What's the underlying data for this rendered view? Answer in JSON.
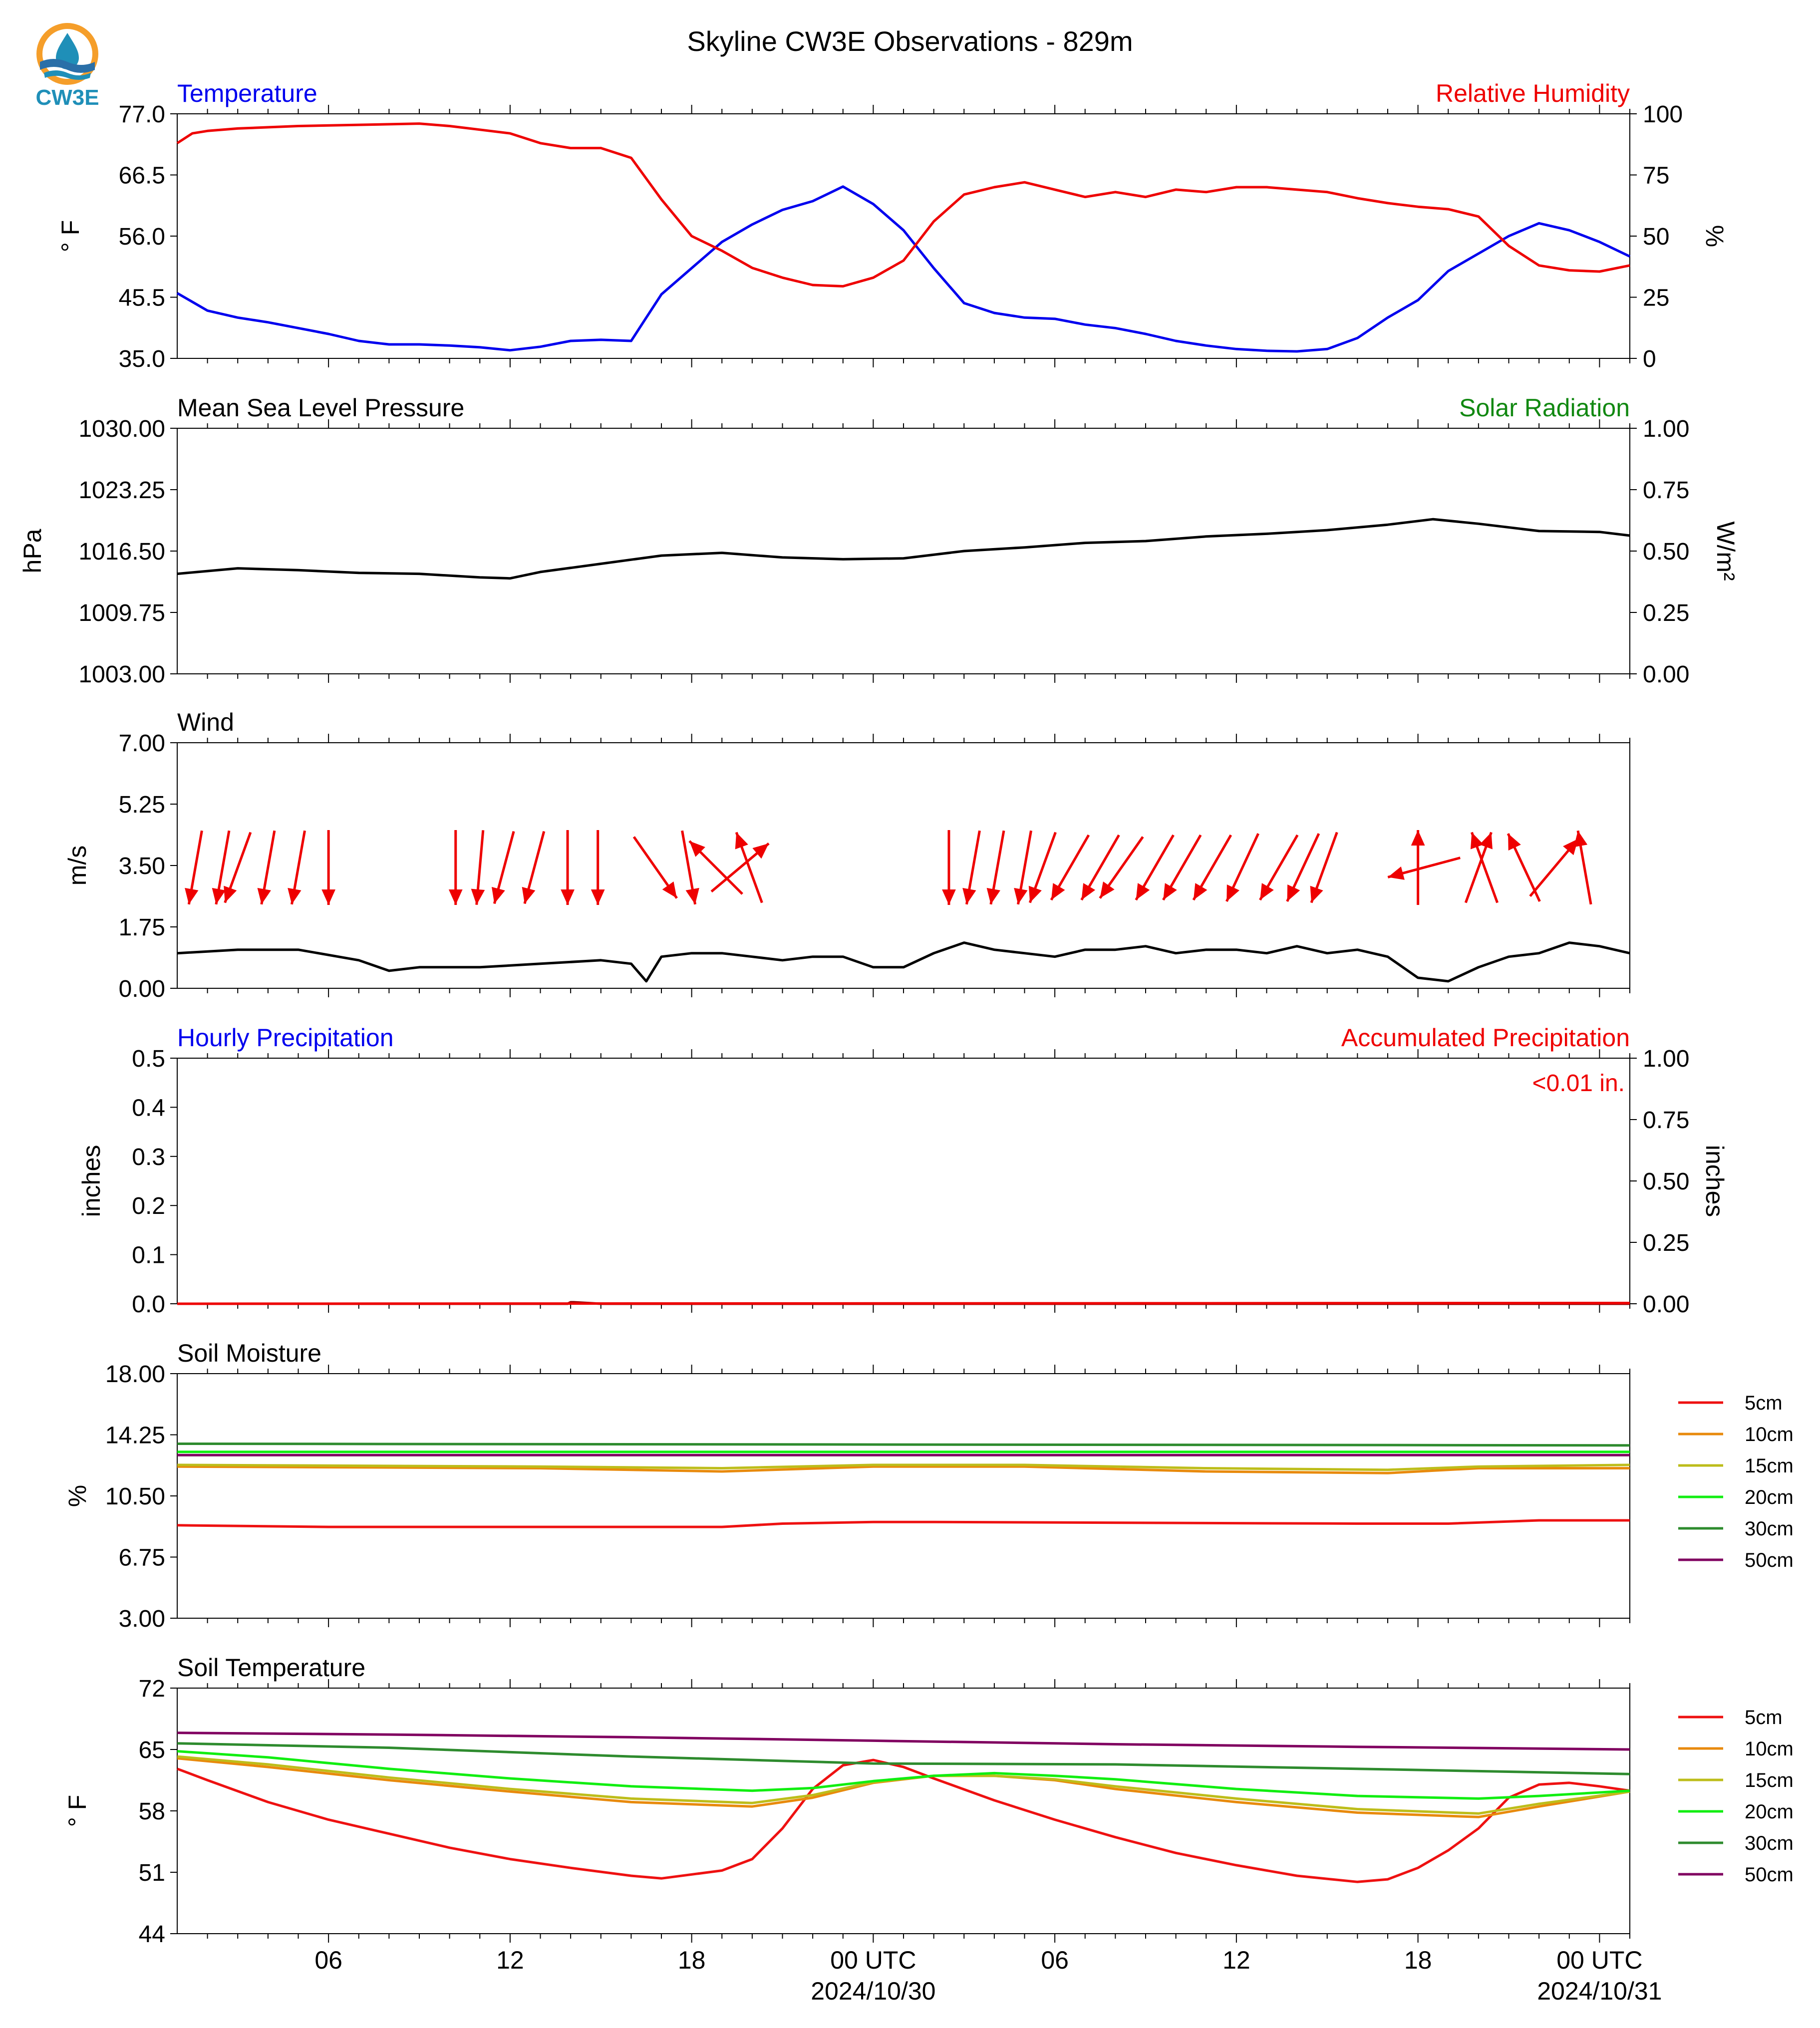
{
  "title": "Skyline CW3E Observations - 829m",
  "logo": {
    "text": "CW3E",
    "colors": [
      "#F59E2A",
      "#1F8FB8",
      "#2A6FA8"
    ]
  },
  "x_axis": {
    "tick_labels": [
      "06",
      "12",
      "18",
      "00 UTC",
      "06",
      "12",
      "18",
      "00 UTC"
    ],
    "date_labels": [
      "2024/10/30",
      "2024/10/31"
    ],
    "tick_hours": [
      6,
      12,
      18,
      24,
      30,
      36,
      42,
      48
    ],
    "range_hours": [
      1,
      49
    ]
  },
  "chart_data": [
    {
      "type": "line",
      "title": "Temperature",
      "title_right": "Relative Humidity",
      "ylabel": "° F",
      "ylabel_right": "%",
      "ylim": [
        35.0,
        77.0
      ],
      "yticks": [
        "35.0",
        "45.5",
        "56.0",
        "66.5",
        "77.0"
      ],
      "ylim_right": [
        0,
        100
      ],
      "yticks_right": [
        "0",
        "25",
        "50",
        "75",
        "100"
      ],
      "series": [
        {
          "name": "Temperature",
          "color": "#0000EE",
          "axis": "left",
          "x": [
            1,
            2,
            3,
            4,
            5,
            6,
            7,
            8,
            9,
            10,
            11,
            12,
            13,
            14,
            15,
            16,
            16.5,
            17,
            18,
            19,
            20,
            21,
            22,
            23,
            23.5,
            24,
            25,
            26,
            27,
            28,
            29,
            30,
            31,
            32,
            33,
            34,
            35,
            36,
            37,
            38,
            39,
            40,
            41,
            42,
            43,
            44,
            45,
            46,
            47,
            48,
            49
          ],
          "y": [
            46.2,
            43.2,
            42.0,
            41.2,
            40.2,
            39.2,
            38.0,
            37.4,
            37.4,
            37.2,
            36.9,
            36.4,
            37.0,
            38.0,
            38.2,
            38.0,
            42.0,
            46.0,
            50.5,
            55.0,
            58.0,
            60.5,
            62.0,
            64.5,
            63.0,
            61.5,
            57.0,
            50.5,
            44.5,
            42.8,
            42.0,
            41.8,
            40.8,
            40.2,
            39.2,
            38.0,
            37.2,
            36.6,
            36.3,
            36.2,
            36.6,
            38.5,
            42.0,
            45.0,
            50.0,
            53.0,
            56.0,
            58.2,
            57.0,
            55.0,
            52.5
          ]
        },
        {
          "name": "Relative Humidity",
          "color": "#EE0000",
          "axis": "right",
          "x": [
            1,
            1.5,
            2,
            3,
            5,
            7,
            9,
            10,
            11,
            12,
            13,
            14,
            15,
            16,
            17,
            18,
            19,
            20,
            21,
            22,
            23,
            24,
            25,
            26,
            27,
            28,
            29,
            30,
            31,
            32,
            33,
            34,
            35,
            36,
            37,
            38,
            39,
            40,
            41,
            42,
            43,
            44,
            45,
            46,
            47,
            48,
            49
          ],
          "y": [
            88,
            92,
            93,
            94,
            95,
            95.5,
            96,
            95,
            93.5,
            92,
            88,
            86,
            86,
            82,
            65,
            50,
            44,
            37,
            33,
            30,
            29.5,
            33,
            40,
            56,
            67,
            70,
            72,
            69,
            66,
            68,
            66,
            69,
            68,
            70,
            70,
            69,
            68,
            65.5,
            63.5,
            62,
            61,
            58,
            46,
            38,
            36,
            35.5,
            38
          ]
        }
      ]
    },
    {
      "type": "line",
      "title": "Mean Sea Level Pressure",
      "title_right": "Solar Radiation",
      "ylabel": "hPa",
      "ylabel_right": "W/m²",
      "ylim": [
        1003.0,
        1030.0
      ],
      "yticks": [
        "1003.00",
        "1009.75",
        "1016.50",
        "1023.25",
        "1030.00"
      ],
      "ylim_right": [
        0.0,
        1.0
      ],
      "yticks_right": [
        "0.00",
        "0.25",
        "0.50",
        "0.75",
        "1.00"
      ],
      "series": [
        {
          "name": "Mean Sea Level Pressure",
          "color": "#000000",
          "axis": "left",
          "x": [
            1,
            3,
            5,
            7,
            9,
            11,
            12,
            13,
            15,
            17,
            19,
            21,
            23,
            25,
            27,
            29,
            31,
            33,
            35,
            37,
            39,
            41,
            42.5,
            44,
            46,
            48,
            49
          ],
          "y": [
            1014.0,
            1014.6,
            1014.4,
            1014.1,
            1014.0,
            1013.6,
            1013.5,
            1014.2,
            1015.1,
            1016.0,
            1016.3,
            1015.8,
            1015.6,
            1015.7,
            1016.5,
            1016.9,
            1017.4,
            1017.6,
            1018.1,
            1018.4,
            1018.8,
            1019.4,
            1020.0,
            1019.5,
            1018.7,
            1018.6,
            1018.2
          ]
        }
      ]
    },
    {
      "type": "line",
      "title": "Wind",
      "ylabel": "m/s",
      "ylim": [
        0.0,
        7.0
      ],
      "yticks": [
        "0.00",
        "1.75",
        "3.50",
        "5.25",
        "7.00"
      ],
      "series": [
        {
          "name": "Wind",
          "color": "#000000",
          "axis": "left",
          "x": [
            1,
            3,
            5,
            7,
            8,
            9,
            11,
            13,
            15,
            16,
            16.5,
            17,
            18,
            19,
            20,
            21,
            22,
            23,
            24,
            25,
            26,
            27,
            28,
            29,
            30,
            31,
            32,
            33,
            34,
            35,
            36,
            37,
            38,
            39,
            40,
            41,
            42,
            43,
            44,
            45,
            46,
            47,
            48,
            49
          ],
          "y": [
            1.0,
            1.1,
            1.1,
            0.8,
            0.5,
            0.6,
            0.6,
            0.7,
            0.8,
            0.7,
            0.2,
            0.9,
            1.0,
            1.0,
            0.9,
            0.8,
            0.9,
            0.9,
            0.6,
            0.6,
            1.0,
            1.3,
            1.1,
            1.0,
            0.9,
            1.1,
            1.1,
            1.2,
            1.0,
            1.1,
            1.1,
            1.0,
            1.2,
            1.0,
            1.1,
            0.9,
            0.3,
            0.2,
            0.6,
            0.9,
            1.0,
            1.3,
            1.2,
            1.0
          ]
        }
      ],
      "wind_vectors_direction_deg": [
        {
          "x": 1.6,
          "to": 190
        },
        {
          "x": 2.5,
          "to": 190
        },
        {
          "x": 3.0,
          "to": 200
        },
        {
          "x": 4.0,
          "to": 190
        },
        {
          "x": 5.0,
          "to": 190
        },
        {
          "x": 6.0,
          "to": 180
        },
        {
          "x": 10.2,
          "to": 180
        },
        {
          "x": 11.0,
          "to": 185
        },
        {
          "x": 11.8,
          "to": 195
        },
        {
          "x": 12.8,
          "to": 195
        },
        {
          "x": 13.9,
          "to": 180
        },
        {
          "x": 14.9,
          "to": 180
        },
        {
          "x": 16.8,
          "to": 145
        },
        {
          "x": 17.9,
          "to": 170
        },
        {
          "x": 18.8,
          "to": 315
        },
        {
          "x": 19.6,
          "to": 50
        },
        {
          "x": 19.9,
          "to": 340
        },
        {
          "x": 26.5,
          "to": 180
        },
        {
          "x": 27.3,
          "to": 190
        },
        {
          "x": 28.1,
          "to": 190
        },
        {
          "x": 29.0,
          "to": 190
        },
        {
          "x": 29.6,
          "to": 200
        },
        {
          "x": 30.5,
          "to": 210
        },
        {
          "x": 31.5,
          "to": 210
        },
        {
          "x": 32.2,
          "to": 215
        },
        {
          "x": 33.3,
          "to": 210
        },
        {
          "x": 34.2,
          "to": 210
        },
        {
          "x": 35.2,
          "to": 210
        },
        {
          "x": 36.2,
          "to": 205
        },
        {
          "x": 37.4,
          "to": 210
        },
        {
          "x": 38.2,
          "to": 205
        },
        {
          "x": 38.9,
          "to": 200
        },
        {
          "x": 42.0,
          "to": 0
        },
        {
          "x": 42.2,
          "to": 255
        },
        {
          "x": 44.0,
          "to": 20
        },
        {
          "x": 44.2,
          "to": 340
        },
        {
          "x": 45.5,
          "to": 335
        },
        {
          "x": 46.5,
          "to": 40
        },
        {
          "x": 47.5,
          "to": 350
        }
      ],
      "wind_vector_color": "#EE0000"
    },
    {
      "type": "line",
      "title": "Hourly Precipitation",
      "title_right": "Accumulated Precipitation",
      "annotation": "<0.01 in.",
      "ylabel": "inches",
      "ylabel_right": "inches",
      "ylim": [
        0.0,
        0.5
      ],
      "yticks": [
        "0.0",
        "0.1",
        "0.2",
        "0.3",
        "0.4",
        "0.5"
      ],
      "ylim_right": [
        0.0,
        1.0
      ],
      "yticks_right": [
        "0.00",
        "0.25",
        "0.50",
        "0.75",
        "1.00"
      ],
      "series": [
        {
          "name": "Hourly Precipitation",
          "color": "#8B0000",
          "axis": "left",
          "x": [
            1,
            13.9,
            14,
            14.1,
            15,
            49
          ],
          "y": [
            0,
            0,
            0.003,
            0.003,
            0,
            0
          ]
        },
        {
          "name": "Accumulated Precipitation",
          "color": "#EE0000",
          "axis": "right",
          "x": [
            1,
            49
          ],
          "y": [
            0,
            0.003
          ]
        }
      ]
    },
    {
      "type": "line",
      "title": "Soil Moisture",
      "ylabel": "%",
      "ylim": [
        3.0,
        18.0
      ],
      "yticks": [
        "3.00",
        "6.75",
        "10.50",
        "14.25",
        "18.00"
      ],
      "legend": [
        "5cm",
        "10cm",
        "15cm",
        "20cm",
        "30cm",
        "50cm"
      ],
      "series": [
        {
          "name": "5cm",
          "color": "#EE1111",
          "x": [
            1,
            6,
            19,
            21,
            24,
            26,
            40,
            43,
            46,
            49
          ],
          "y": [
            8.7,
            8.6,
            8.6,
            8.8,
            8.9,
            8.9,
            8.8,
            8.8,
            9.0,
            9.0
          ]
        },
        {
          "name": "10cm",
          "color": "#E88A0C",
          "x": [
            1,
            13,
            19,
            24,
            29,
            35,
            41,
            44,
            49
          ],
          "y": [
            12.3,
            12.2,
            12.0,
            12.3,
            12.3,
            12.0,
            11.9,
            12.2,
            12.2
          ]
        },
        {
          "name": "15cm",
          "color": "#BDBD1A",
          "x": [
            1,
            13,
            19,
            24,
            29,
            35,
            41,
            44,
            49
          ],
          "y": [
            12.4,
            12.3,
            12.2,
            12.4,
            12.4,
            12.2,
            12.1,
            12.3,
            12.4
          ]
        },
        {
          "name": "20cm",
          "color": "#11EE11",
          "x": [
            1,
            49
          ],
          "y": [
            13.2,
            13.2
          ]
        },
        {
          "name": "30cm",
          "color": "#2E8B2E",
          "x": [
            1,
            49
          ],
          "y": [
            13.7,
            13.6
          ]
        },
        {
          "name": "50cm",
          "color": "#800060",
          "x": [
            1,
            49
          ],
          "y": [
            13.0,
            13.0
          ]
        }
      ]
    },
    {
      "type": "line",
      "title": "Soil Temperature",
      "ylabel": "° F",
      "ylim": [
        44,
        72
      ],
      "yticks": [
        "44",
        "51",
        "58",
        "65",
        "72"
      ],
      "legend": [
        "5cm",
        "10cm",
        "15cm",
        "20cm",
        "30cm",
        "50cm"
      ],
      "series": [
        {
          "name": "5cm",
          "color": "#EE1111",
          "x": [
            1,
            2,
            4,
            6,
            8,
            10,
            12,
            14,
            16,
            17,
            19,
            20,
            21,
            22,
            23,
            24,
            25,
            26,
            28,
            30,
            32,
            34,
            36,
            38,
            40,
            41,
            42,
            43,
            44,
            45,
            46,
            47,
            48,
            49
          ],
          "y": [
            62.8,
            61.5,
            59.0,
            57.0,
            55.4,
            53.8,
            52.5,
            51.5,
            50.6,
            50.3,
            51.2,
            52.5,
            56.0,
            60.5,
            63.2,
            63.8,
            63.0,
            61.7,
            59.2,
            57.0,
            55.0,
            53.2,
            51.8,
            50.6,
            49.9,
            50.2,
            51.5,
            53.5,
            56.0,
            59.5,
            61.0,
            61.2,
            60.8,
            60.3
          ]
        },
        {
          "name": "10cm",
          "color": "#E88A0C",
          "x": [
            1,
            4,
            8,
            12,
            16,
            20,
            22,
            24,
            26,
            28,
            30,
            32,
            36,
            40,
            44,
            46,
            49
          ],
          "y": [
            64.0,
            63.0,
            61.5,
            60.2,
            59.0,
            58.5,
            59.5,
            61.2,
            62.0,
            62.0,
            61.5,
            60.5,
            59.0,
            57.8,
            57.3,
            58.5,
            60.2
          ]
        },
        {
          "name": "15cm",
          "color": "#BDBD1A",
          "x": [
            1,
            4,
            8,
            12,
            16,
            20,
            22,
            24,
            26,
            28,
            30,
            32,
            36,
            40,
            44,
            46,
            49
          ],
          "y": [
            64.2,
            63.3,
            61.8,
            60.5,
            59.4,
            58.9,
            59.8,
            61.3,
            62.0,
            62.0,
            61.6,
            60.8,
            59.4,
            58.2,
            57.7,
            58.8,
            60.2
          ]
        },
        {
          "name": "20cm",
          "color": "#11EE11",
          "x": [
            1,
            4,
            8,
            12,
            16,
            20,
            22,
            24,
            26,
            28,
            30,
            32,
            36,
            40,
            44,
            46,
            49
          ],
          "y": [
            64.8,
            64.1,
            62.8,
            61.7,
            60.8,
            60.3,
            60.6,
            61.4,
            62.0,
            62.3,
            62.0,
            61.6,
            60.5,
            59.7,
            59.4,
            59.7,
            60.3
          ]
        },
        {
          "name": "30cm",
          "color": "#2E8B2E",
          "x": [
            1,
            8,
            16,
            24,
            32,
            40,
            49
          ],
          "y": [
            65.7,
            65.2,
            64.2,
            63.4,
            63.3,
            62.8,
            62.2
          ]
        },
        {
          "name": "50cm",
          "color": "#800060",
          "x": [
            1,
            8,
            16,
            24,
            32,
            40,
            49
          ],
          "y": [
            66.9,
            66.7,
            66.4,
            66.0,
            65.6,
            65.3,
            65.0
          ]
        }
      ]
    }
  ]
}
